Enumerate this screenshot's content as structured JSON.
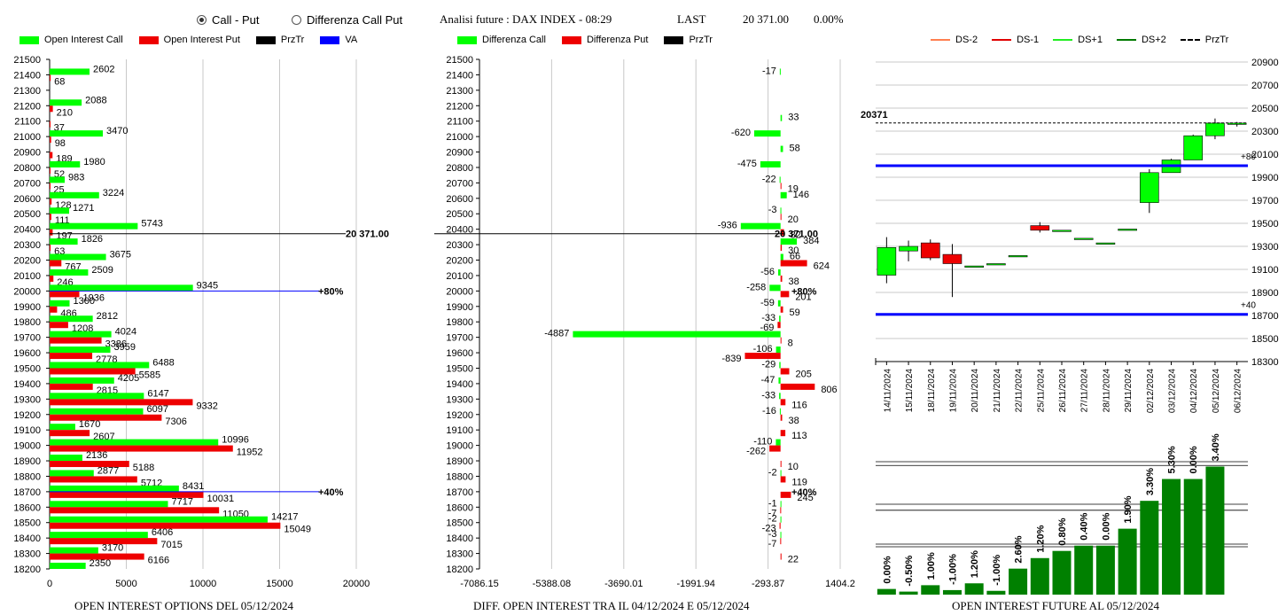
{
  "header": {
    "radio_call_put": "Call - Put",
    "radio_diff": "Differenza Call Put",
    "radio_selected": "call-put",
    "title": "Analisi future : DAX INDEX - 08:29",
    "last_label": "LAST",
    "last_value": "20 371.00",
    "last_change": "0.00%"
  },
  "legend_oi": [
    {
      "label": "Open Interest Call",
      "color": "#00ff00"
    },
    {
      "label": "Open Interest Put",
      "color": "#ff0000"
    },
    {
      "label": "PrzTr",
      "color": "#000000"
    },
    {
      "label": "VA",
      "color": "#0000ff"
    }
  ],
  "legend_diff": [
    {
      "label": "Differenza Call",
      "color": "#00ff00"
    },
    {
      "label": "Differenza Put",
      "color": "#ff0000"
    },
    {
      "label": "PrzTr",
      "color": "#000000"
    }
  ],
  "legend_future": [
    {
      "label": "DS-2",
      "color": "#ff7f50",
      "dash": false
    },
    {
      "label": "DS-1",
      "color": "#e00000",
      "dash": false
    },
    {
      "label": "DS+1",
      "color": "#22ee22",
      "dash": false
    },
    {
      "label": "DS+2",
      "color": "#007a00",
      "dash": false
    },
    {
      "label": "PrzTr",
      "color": "#000000",
      "dash": true
    }
  ],
  "footers": {
    "oi": "OPEN INTEREST OPTIONS DEL 05/12/2024",
    "diff": "DIFF. OPEN INTEREST TRA IL 04/12/2024 E 05/12/2024",
    "future": "OPEN INTEREST FUTURE AL 05/12/2024"
  },
  "colors": {
    "call": "#00ff00",
    "put": "#ee0000",
    "va": "#0000ff",
    "candle_up": "#00ff00",
    "candle_down": "#ee0000",
    "bar": "#008000",
    "grid": "#c8c8c8"
  },
  "chart_data": [
    {
      "type": "bar",
      "orientation": "horizontal",
      "strikes": [
        21500,
        21400,
        21300,
        21200,
        21100,
        21000,
        20900,
        20800,
        20700,
        20600,
        20500,
        20400,
        20300,
        20200,
        20100,
        20000,
        19900,
        19800,
        19700,
        19600,
        19500,
        19400,
        19300,
        19200,
        19100,
        19000,
        18900,
        18800,
        18700,
        18600,
        18500,
        18400,
        18300,
        18200
      ],
      "series": [
        {
          "name": "Open Interest Call",
          "values": [
            null,
            2602,
            null,
            2088,
            null,
            3470,
            null,
            1980,
            983,
            3224,
            1271,
            5743,
            1826,
            3675,
            2509,
            9345,
            1300,
            2812,
            4024,
            3959,
            6488,
            4205,
            6147,
            6097,
            1670,
            10996,
            2136,
            2877,
            8431,
            7717,
            14217,
            6406,
            3170,
            2350
          ]
        },
        {
          "name": "Open Interest Put",
          "values": [
            null,
            68,
            null,
            210,
            37,
            98,
            189,
            52,
            25,
            128,
            111,
            197,
            63,
            767,
            246,
            1936,
            486,
            1208,
            3386,
            2778,
            5585,
            2815,
            9332,
            7306,
            2607,
            11952,
            5188,
            5712,
            10031,
            11050,
            15049,
            7015,
            6166,
            null
          ]
        }
      ],
      "przTr": {
        "strike": 20371,
        "label": "20 371.00"
      },
      "va_lines": [
        {
          "strike": 20000,
          "label": "+80%"
        },
        {
          "strike": 18700,
          "label": "+40%"
        }
      ],
      "xlim": [
        0,
        20000
      ],
      "xticks": [
        0,
        5000,
        10000,
        15000,
        20000
      ]
    },
    {
      "type": "bar",
      "orientation": "horizontal",
      "strikes": [
        21500,
        21400,
        21300,
        21200,
        21100,
        21000,
        20900,
        20800,
        20700,
        20600,
        20500,
        20400,
        20300,
        20200,
        20100,
        20000,
        19900,
        19800,
        19700,
        19600,
        19500,
        19400,
        19300,
        19200,
        19100,
        19000,
        18900,
        18800,
        18700,
        18600,
        18500,
        18400,
        18300,
        18200
      ],
      "series": [
        {
          "name": "Differenza Call",
          "values": [
            null,
            -17,
            null,
            null,
            33,
            -620,
            58,
            -475,
            -22,
            146,
            -3,
            -936,
            384,
            66,
            -56,
            -258,
            -59,
            -33,
            -4887,
            -106,
            -29,
            -47,
            -33,
            -16,
            null,
            -110,
            null,
            -2,
            null,
            -1,
            -2,
            -3,
            null,
            null
          ]
        },
        {
          "name": "Differenza Put",
          "values": [
            null,
            null,
            null,
            null,
            null,
            null,
            null,
            null,
            19,
            null,
            20,
            82,
            30,
            624,
            38,
            201,
            59,
            -69,
            8,
            -839,
            205,
            806,
            116,
            38,
            113,
            -262,
            10,
            119,
            245,
            -7,
            -23,
            -7,
            22,
            null
          ]
        }
      ],
      "przTr": {
        "strike": 20371,
        "label": "20 371.00"
      },
      "va_lines": [
        {
          "strike": 20000,
          "label": "+80%"
        },
        {
          "strike": 18700,
          "label": "+40%"
        }
      ],
      "xlim": [
        -7086.15,
        1404.2
      ],
      "xticks": [
        -7086.15,
        -5388.08,
        -3690.01,
        -1991.94,
        -293.87,
        1404.2
      ],
      "xtick_labels": [
        "-7086.15",
        "-5388.08",
        "-3690.01",
        "-1991.94",
        "-293.87",
        "1404.2"
      ]
    },
    {
      "type": "candlestick",
      "dates": [
        "14/11/2024",
        "15/11/2024",
        "18/11/2024",
        "19/11/2024",
        "20/11/2024",
        "21/11/2024",
        "22/11/2024",
        "25/11/2024",
        "26/11/2024",
        "27/11/2024",
        "28/11/2024",
        "29/11/2024",
        "02/12/2024",
        "03/12/2024",
        "04/12/2024",
        "05/12/2024",
        "06/12/2024"
      ],
      "ohlc": [
        [
          19050,
          19380,
          18980,
          19290
        ],
        [
          19260,
          19350,
          19170,
          19300
        ],
        [
          19330,
          19360,
          19180,
          19200
        ],
        [
          19230,
          19320,
          18860,
          19150
        ],
        [
          19130,
          19130,
          19130,
          19130
        ],
        [
          19150,
          19150,
          19150,
          19150
        ],
        [
          19220,
          19220,
          19220,
          19220
        ],
        [
          19480,
          19510,
          19420,
          19440
        ],
        [
          19440,
          19440,
          19440,
          19440
        ],
        [
          19370,
          19370,
          19370,
          19370
        ],
        [
          19330,
          19330,
          19330,
          19330
        ],
        [
          19450,
          19450,
          19450,
          19450
        ],
        [
          19680,
          19970,
          19590,
          19940
        ],
        [
          19940,
          20060,
          19940,
          20050
        ],
        [
          20050,
          20270,
          20050,
          20260
        ],
        [
          20260,
          20410,
          20230,
          20370
        ],
        [
          20360,
          20380,
          20340,
          20370
        ]
      ],
      "ylim": [
        18300,
        20900
      ],
      "yticks": [
        18300,
        18500,
        18700,
        18900,
        19100,
        19300,
        19500,
        19700,
        19900,
        20100,
        20300,
        20500,
        20700,
        20900
      ],
      "przTr": {
        "value": 20371,
        "label": "20371"
      },
      "va_lines": [
        {
          "value": 20000,
          "label": "+80"
        },
        {
          "value": 18710,
          "label": "+40"
        }
      ]
    },
    {
      "type": "bar",
      "categories": [
        "14/11/2024",
        "15/11/2024",
        "18/11/2024",
        "19/11/2024",
        "20/11/2024",
        "21/11/2024",
        "22/11/2024",
        "25/11/2024",
        "26/11/2024",
        "27/11/2024",
        "28/11/2024",
        "29/11/2024",
        "02/12/2024",
        "03/12/2024",
        "04/12/2024",
        "05/12/2024",
        "06/12/2024"
      ],
      "values": [
        1.5,
        0.8,
        2.5,
        1.2,
        3.0,
        1.0,
        6.9,
        9.7,
        11.6,
        13.0,
        13.0,
        17.5,
        24.9,
        30.7,
        30.7,
        34.0,
        null
      ],
      "labels": [
        "0.00%",
        "-0.50%",
        "1.00%",
        "-1.00%",
        "1.20%",
        "-1.00%",
        "2.60%",
        "1.20%",
        "0.80%",
        "0.40%",
        "0.00%",
        "1.90%",
        "3.30%",
        "5.30%",
        "0.00%",
        "3.40%",
        ""
      ]
    }
  ]
}
